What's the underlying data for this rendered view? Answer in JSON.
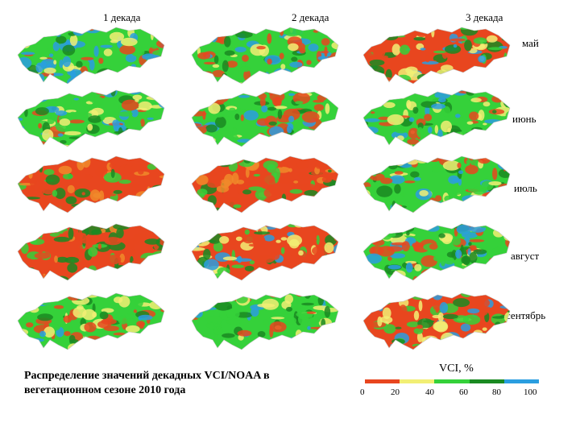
{
  "columns": [
    "1 декада",
    "2 декада",
    "3 декада"
  ],
  "rows": [
    "май",
    "июнь",
    "июль",
    "август",
    "сентябрь"
  ],
  "caption": [
    "Распределение значений декадных VCI/NOAA в",
    "вегетационном сезоне 2010 года"
  ],
  "legend": {
    "title": "VCI, %",
    "ticks": [
      "0",
      "20",
      "40",
      "60",
      "80",
      "100"
    ],
    "colors": [
      "#e8461f",
      "#f2ef74",
      "#35d13a",
      "#1a8a22",
      "#2a9ee0"
    ]
  },
  "dominant_classes": [
    [
      "blue-green",
      "green-red",
      "red-green"
    ],
    [
      "green-blue",
      "green-red",
      "green"
    ],
    [
      "red",
      "red",
      "green-red"
    ],
    [
      "red",
      "red-green",
      "green-red"
    ],
    [
      "green-red",
      "green",
      "red-green"
    ]
  ]
}
